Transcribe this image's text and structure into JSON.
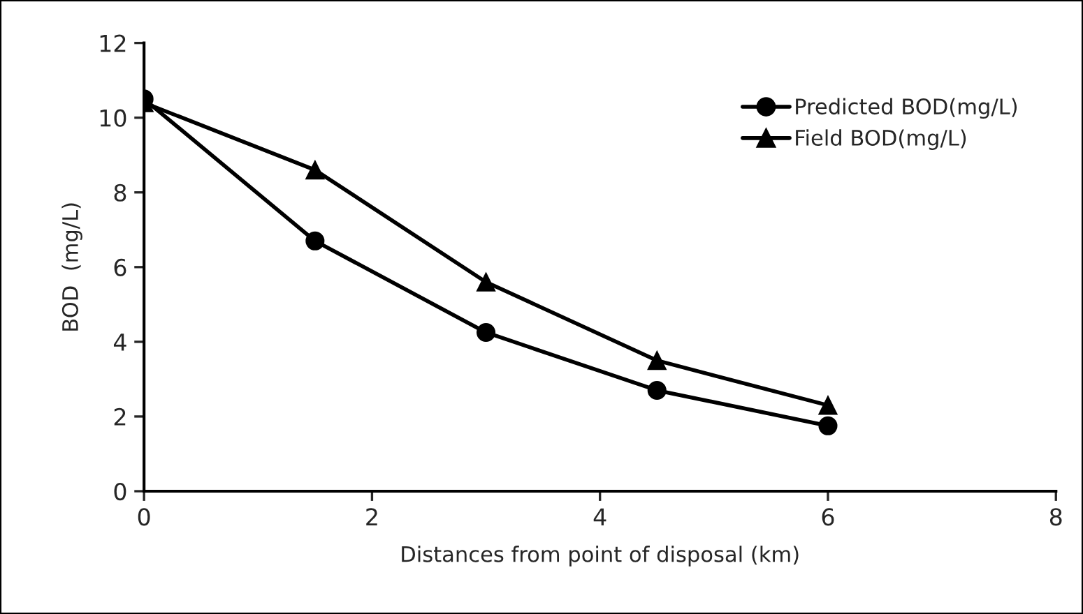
{
  "chart_data": {
    "type": "line",
    "xlabel": "Distances from point of disposal (km)",
    "ylabel": "BOD  (mg/L)",
    "x": [
      0,
      1.5,
      3,
      4.5,
      6
    ],
    "series": [
      {
        "name": "Predicted BOD(mg/L)",
        "color": "#000000",
        "marker": "circle",
        "values": [
          10.5,
          6.7,
          4.25,
          2.7,
          1.75
        ]
      },
      {
        "name": "Field BOD(mg/L)",
        "color": "#000000",
        "marker": "triangle",
        "values": [
          10.4,
          8.6,
          5.6,
          3.5,
          2.3
        ]
      }
    ],
    "xlim": [
      0,
      8
    ],
    "xticks": [
      0,
      2,
      4,
      6,
      8
    ],
    "ylim": [
      0,
      12
    ],
    "yticks": [
      0,
      2,
      4,
      6,
      8,
      10,
      12
    ],
    "grid": false,
    "legend": "top right",
    "line_style": "solid"
  }
}
